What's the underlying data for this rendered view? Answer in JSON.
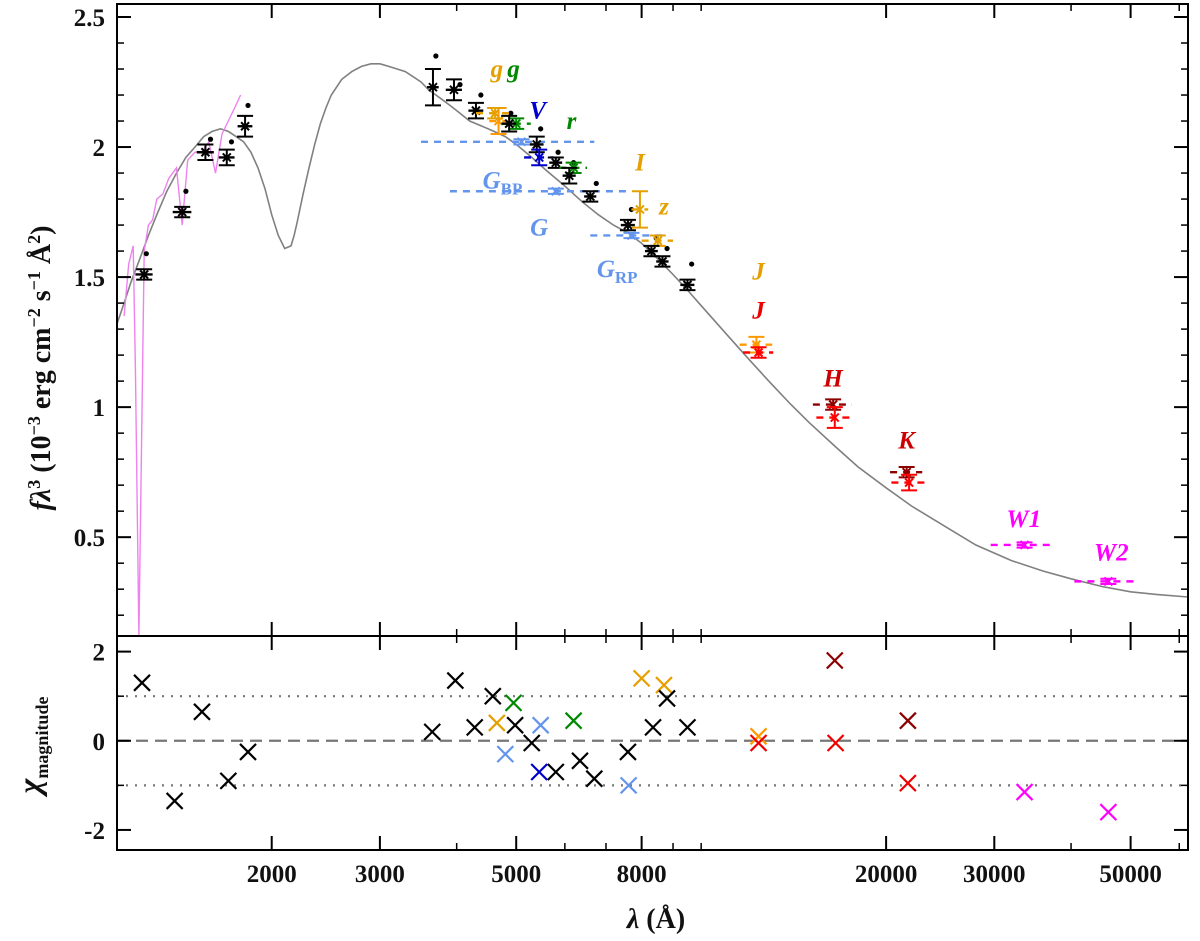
{
  "chart_data": [
    {
      "type": "scatter",
      "panel": "sed",
      "ylabel_parts": {
        "f": "f",
        "lambda": "λ",
        "exp3": "3",
        "open": " (10",
        "exp_m3": "−3",
        "units1": " erg cm",
        "exp_m2": "−2",
        "units2": " s",
        "exp_m1": "−1",
        "units3": " Å",
        "exp2": "2",
        "close": ")"
      },
      "x_scale": "log",
      "xlim": [
        1120,
        62000
      ],
      "ylim": [
        0.12,
        2.55
      ],
      "y_ticks": [
        0.5,
        1,
        1.5,
        2,
        2.5
      ],
      "y_tick_labels": [
        "0.5",
        "1",
        "1.5",
        "2",
        "2.5"
      ],
      "model_spectrum": {
        "color": "#808080",
        "x": [
          1120,
          1150,
          1180,
          1220,
          1260,
          1300,
          1350,
          1400,
          1450,
          1500,
          1550,
          1600,
          1650,
          1700,
          1750,
          1800,
          1850,
          1900,
          1950,
          2000,
          2050,
          2100,
          2150,
          2175,
          2200,
          2250,
          2300,
          2350,
          2400,
          2450,
          2500,
          2600,
          2700,
          2800,
          2900,
          3000,
          3100,
          3200,
          3300,
          3400,
          3500,
          3600,
          3700,
          3800,
          3900,
          4000,
          4200,
          4400,
          4600,
          4800,
          5000,
          5300,
          5600,
          6000,
          6400,
          6800,
          7200,
          7600,
          8000,
          8500,
          9000,
          9500,
          10000,
          11000,
          12000,
          13000,
          14000,
          15000,
          16500,
          18000,
          20000,
          22000,
          25000,
          28000,
          32000,
          36000,
          40000,
          45000,
          50000,
          55000,
          62000
        ],
        "y": [
          1.32,
          1.4,
          1.48,
          1.57,
          1.66,
          1.74,
          1.83,
          1.9,
          1.96,
          2.0,
          2.04,
          2.06,
          2.07,
          2.06,
          2.04,
          2.02,
          1.98,
          1.92,
          1.84,
          1.74,
          1.66,
          1.61,
          1.62,
          1.66,
          1.71,
          1.82,
          1.92,
          2.01,
          2.09,
          2.15,
          2.2,
          2.26,
          2.29,
          2.31,
          2.32,
          2.32,
          2.31,
          2.3,
          2.29,
          2.27,
          2.25,
          2.22,
          2.2,
          2.18,
          2.16,
          2.14,
          2.1,
          2.08,
          2.06,
          2.04,
          2.01,
          1.96,
          1.91,
          1.85,
          1.79,
          1.74,
          1.7,
          1.67,
          1.63,
          1.57,
          1.51,
          1.45,
          1.39,
          1.28,
          1.18,
          1.09,
          1.01,
          0.94,
          0.85,
          0.77,
          0.69,
          0.62,
          0.54,
          0.47,
          0.41,
          0.37,
          0.34,
          0.31,
          0.29,
          0.28,
          0.27
        ]
      },
      "uv_spectrum": {
        "color": "#ee82ee",
        "x": [
          1150,
          1170,
          1190,
          1200,
          1216,
          1240,
          1260,
          1280,
          1300,
          1330,
          1360,
          1400,
          1430,
          1460,
          1500,
          1540,
          1580,
          1620,
          1660,
          1700,
          1740,
          1780
        ],
        "y": [
          1.35,
          1.55,
          1.62,
          1.15,
          0.12,
          1.6,
          1.7,
          1.72,
          1.8,
          1.82,
          1.88,
          1.92,
          1.7,
          1.95,
          1.98,
          1.98,
          2.02,
          1.9,
          2.05,
          2.1,
          2.15,
          2.2
        ]
      },
      "points": [
        {
          "x": 1240,
          "y": 1.51,
          "dx": 40,
          "dy": 0.02,
          "color": "#000000"
        },
        {
          "x": 1430,
          "y": 1.75,
          "dx": 50,
          "dy": 0.02,
          "color": "#000000"
        },
        {
          "x": 1560,
          "y": 1.98,
          "dx": 50,
          "dy": 0.03,
          "color": "#000000"
        },
        {
          "x": 1690,
          "y": 1.96,
          "dx": 50,
          "dy": 0.03,
          "color": "#000000"
        },
        {
          "x": 1810,
          "y": 2.08,
          "dx": 50,
          "dy": 0.04,
          "color": "#000000"
        },
        {
          "x": 3660,
          "y": 2.23,
          "dx": 80,
          "dy": 0.07,
          "color": "#000000"
        },
        {
          "x": 3960,
          "y": 2.22,
          "dx": 120,
          "dy": 0.04,
          "color": "#000000"
        },
        {
          "x": 4300,
          "y": 2.14,
          "dx": 120,
          "dy": 0.03,
          "color": "#000000"
        },
        {
          "x": 4680,
          "y": 2.1,
          "dx": 160,
          "dy": 0.05,
          "color": "#ff9900"
        },
        {
          "x": 4620,
          "y": 2.13,
          "dx": 320,
          "dy": 0.02,
          "color": "#e5a000"
        },
        {
          "x": 5000,
          "y": 2.09,
          "dx": 280,
          "dy": 0.02,
          "color": "#008800"
        },
        {
          "x": 4870,
          "y": 2.09,
          "dx": 130,
          "dy": 0.03,
          "color": "#000000"
        },
        {
          "x": 5100,
          "y": 2.02,
          "dx": 1600,
          "dy": 0.01,
          "color": "#6495ed"
        },
        {
          "x": 5400,
          "y": 2.01,
          "dx": 140,
          "dy": 0.03,
          "color": "#000000"
        },
        {
          "x": 5450,
          "y": 1.96,
          "dx": 300,
          "dy": 0.03,
          "color": "#0000cc"
        },
        {
          "x": 5800,
          "y": 1.94,
          "dx": 140,
          "dy": 0.02,
          "color": "#000000"
        },
        {
          "x": 6200,
          "y": 1.92,
          "dx": 320,
          "dy": 0.02,
          "color": "#008800"
        },
        {
          "x": 6100,
          "y": 1.89,
          "dx": 150,
          "dy": 0.03,
          "color": "#000000"
        },
        {
          "x": 5800,
          "y": 1.83,
          "dx": 1900,
          "dy": 0.01,
          "color": "#6495ed"
        },
        {
          "x": 6600,
          "y": 1.81,
          "dx": 150,
          "dy": 0.02,
          "color": "#000000"
        },
        {
          "x": 7600,
          "y": 1.7,
          "dx": 200,
          "dy": 0.02,
          "color": "#000000"
        },
        {
          "x": 7700,
          "y": 1.66,
          "dx": 1100,
          "dy": 0.01,
          "color": "#6495ed"
        },
        {
          "x": 7950,
          "y": 1.76,
          "dx": 250,
          "dy": 0.07,
          "color": "#e5a000"
        },
        {
          "x": 8500,
          "y": 1.64,
          "dx": 500,
          "dy": 0.02,
          "color": "#e5a000"
        },
        {
          "x": 8300,
          "y": 1.6,
          "dx": 200,
          "dy": 0.02,
          "color": "#000000"
        },
        {
          "x": 8650,
          "y": 1.56,
          "dx": 200,
          "dy": 0.02,
          "color": "#000000"
        },
        {
          "x": 9500,
          "y": 1.47,
          "dx": 250,
          "dy": 0.02,
          "color": "#000000"
        },
        {
          "x": 12300,
          "y": 1.24,
          "dx": 750,
          "dy": 0.03,
          "color": "#ff9900"
        },
        {
          "x": 12400,
          "y": 1.21,
          "dx": 700,
          "dy": 0.02,
          "color": "#ff0000"
        },
        {
          "x": 16400,
          "y": 1.01,
          "dx": 1200,
          "dy": 0.02,
          "color": "#8b0000"
        },
        {
          "x": 16500,
          "y": 0.96,
          "dx": 1100,
          "dy": 0.04,
          "color": "#ff0000"
        },
        {
          "x": 21600,
          "y": 0.75,
          "dx": 1300,
          "dy": 0.02,
          "color": "#8b0000"
        },
        {
          "x": 21800,
          "y": 0.71,
          "dx": 1400,
          "dy": 0.03,
          "color": "#ff0000"
        },
        {
          "x": 33600,
          "y": 0.47,
          "dx": 4000,
          "dy": 0.01,
          "color": "#ff00ff"
        },
        {
          "x": 46000,
          "y": 0.33,
          "dx": 5500,
          "dy": 0.01,
          "color": "#ff00ff"
        }
      ],
      "synthetic_dots": [
        {
          "x": 1250,
          "y": 1.59
        },
        {
          "x": 1450,
          "y": 1.83
        },
        {
          "x": 1590,
          "y": 2.03
        },
        {
          "x": 1720,
          "y": 2.02
        },
        {
          "x": 1830,
          "y": 2.16
        },
        {
          "x": 3700,
          "y": 2.35
        },
        {
          "x": 4050,
          "y": 2.24
        },
        {
          "x": 4380,
          "y": 2.2
        },
        {
          "x": 4900,
          "y": 2.13
        },
        {
          "x": 5480,
          "y": 2.07
        },
        {
          "x": 5850,
          "y": 1.98
        },
        {
          "x": 6200,
          "y": 1.94
        },
        {
          "x": 6750,
          "y": 1.86
        },
        {
          "x": 7700,
          "y": 1.76
        },
        {
          "x": 8450,
          "y": 1.65
        },
        {
          "x": 8800,
          "y": 1.61
        },
        {
          "x": 9650,
          "y": 1.55
        }
      ],
      "band_labels": [
        {
          "text": "g",
          "sub": "",
          "x": 4650,
          "y": 2.27,
          "color": "#e5a000"
        },
        {
          "text": "g",
          "sub": "",
          "x": 4950,
          "y": 2.27,
          "color": "#008800"
        },
        {
          "text": "V",
          "sub": "",
          "x": 5420,
          "y": 2.11,
          "color": "#0000cc"
        },
        {
          "text": "r",
          "sub": "",
          "x": 6150,
          "y": 2.07,
          "color": "#008800"
        },
        {
          "text": "I",
          "sub": "",
          "x": 7950,
          "y": 1.91,
          "color": "#e5a000"
        },
        {
          "text": "z",
          "sub": "",
          "x": 8700,
          "y": 1.74,
          "color": "#e5a000"
        },
        {
          "text": "G",
          "sub": "BP",
          "x": 4750,
          "y": 1.84,
          "color": "#6495ed"
        },
        {
          "text": "G",
          "sub": "",
          "x": 5450,
          "y": 1.66,
          "color": "#6495ed"
        },
        {
          "text": "G",
          "sub": "RP",
          "x": 7300,
          "y": 1.5,
          "color": "#6495ed"
        },
        {
          "text": "J",
          "sub": "",
          "x": 12400,
          "y": 1.49,
          "color": "#e5a000"
        },
        {
          "text": "J",
          "sub": "",
          "x": 12400,
          "y": 1.34,
          "color": "#ee0000"
        },
        {
          "text": "H",
          "sub": "",
          "x": 16400,
          "y": 1.08,
          "color": "#cc0000"
        },
        {
          "text": "K",
          "sub": "",
          "x": 21600,
          "y": 0.84,
          "color": "#cc0000"
        },
        {
          "text": "W1",
          "sub": "",
          "x": 33500,
          "y": 0.54,
          "color": "#ff00ff"
        },
        {
          "text": "W2",
          "sub": "",
          "x": 46500,
          "y": 0.41,
          "color": "#ff00ff"
        }
      ]
    },
    {
      "type": "scatter",
      "panel": "residuals",
      "ylabel_main": "χ",
      "ylabel_sub": "magnitude",
      "xlabel_main": "λ",
      "xlabel_unit": " (Å)",
      "x_scale": "log",
      "xlim": [
        1120,
        62000
      ],
      "ylim": [
        -2.45,
        2.35
      ],
      "y_ticks": [
        -2,
        0,
        2
      ],
      "y_tick_labels": [
        "-2",
        "0",
        "2"
      ],
      "x_ticks": [
        2000,
        3000,
        5000,
        8000,
        20000,
        30000,
        50000
      ],
      "x_tick_labels": [
        "2000",
        "3000",
        "5000",
        "8000",
        "20000",
        "30000",
        "50000"
      ],
      "reference_lines": [
        {
          "y": 0,
          "style": "dashed"
        },
        {
          "y": 1,
          "style": "dotted"
        },
        {
          "y": -1,
          "style": "dotted"
        }
      ],
      "points": [
        {
          "x": 1230,
          "y": 1.3,
          "color": "#000000"
        },
        {
          "x": 1390,
          "y": -1.35,
          "color": "#000000"
        },
        {
          "x": 1540,
          "y": 0.65,
          "color": "#000000"
        },
        {
          "x": 1700,
          "y": -0.9,
          "color": "#000000"
        },
        {
          "x": 1830,
          "y": -0.25,
          "color": "#000000"
        },
        {
          "x": 3650,
          "y": 0.2,
          "color": "#000000"
        },
        {
          "x": 3980,
          "y": 1.35,
          "color": "#000000"
        },
        {
          "x": 4280,
          "y": 0.3,
          "color": "#000000"
        },
        {
          "x": 4580,
          "y": 1.0,
          "color": "#000000"
        },
        {
          "x": 4650,
          "y": 0.4,
          "color": "#e5a000"
        },
        {
          "x": 4800,
          "y": -0.3,
          "color": "#6495ed"
        },
        {
          "x": 4950,
          "y": 0.85,
          "color": "#008800"
        },
        {
          "x": 4980,
          "y": 0.35,
          "color": "#000000"
        },
        {
          "x": 5300,
          "y": -0.05,
          "color": "#000000"
        },
        {
          "x": 5480,
          "y": 0.35,
          "color": "#6495ed"
        },
        {
          "x": 5450,
          "y": -0.7,
          "color": "#0000cc"
        },
        {
          "x": 5800,
          "y": -0.7,
          "color": "#000000"
        },
        {
          "x": 6200,
          "y": 0.45,
          "color": "#008800"
        },
        {
          "x": 6350,
          "y": -0.45,
          "color": "#000000"
        },
        {
          "x": 6700,
          "y": -0.85,
          "color": "#000000"
        },
        {
          "x": 7600,
          "y": -0.25,
          "color": "#000000"
        },
        {
          "x": 7620,
          "y": -1.0,
          "color": "#6495ed"
        },
        {
          "x": 8000,
          "y": 1.4,
          "color": "#e5a000"
        },
        {
          "x": 8350,
          "y": 0.3,
          "color": "#000000"
        },
        {
          "x": 8700,
          "y": 1.25,
          "color": "#e5a000"
        },
        {
          "x": 8800,
          "y": 0.95,
          "color": "#000000"
        },
        {
          "x": 9500,
          "y": 0.3,
          "color": "#000000"
        },
        {
          "x": 12400,
          "y": 0.1,
          "color": "#ff9900"
        },
        {
          "x": 12400,
          "y": -0.05,
          "color": "#ee0000"
        },
        {
          "x": 16500,
          "y": 1.8,
          "color": "#8b0000"
        },
        {
          "x": 16550,
          "y": -0.05,
          "color": "#ee0000"
        },
        {
          "x": 21700,
          "y": 0.45,
          "color": "#8b0000"
        },
        {
          "x": 21700,
          "y": -0.95,
          "color": "#ee0000"
        },
        {
          "x": 33600,
          "y": -1.15,
          "color": "#ff00ff"
        },
        {
          "x": 46000,
          "y": -1.6,
          "color": "#ff00ff"
        }
      ]
    }
  ]
}
